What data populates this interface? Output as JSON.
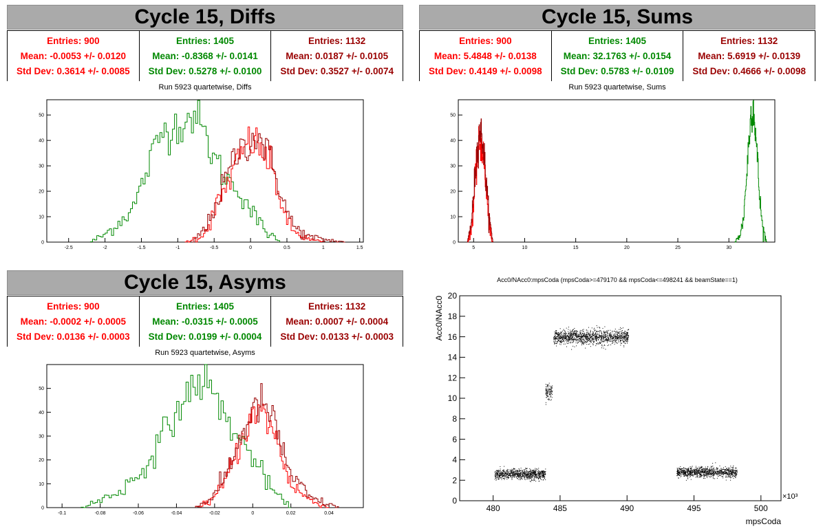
{
  "colors": {
    "red": "#ff0000",
    "green": "#008800",
    "darkred": "#990000",
    "scatter": "#000000"
  },
  "panels": [
    {
      "id": "diffs",
      "title": "Cycle 15, Diffs",
      "subtitle": "Run 5923 quartetwise, Diffs",
      "stats": [
        {
          "entries": "Entries: 900",
          "mean": "Mean: -0.0053 +/- 0.0120",
          "std": "Std Dev: 0.3614 +/- 0.0085",
          "color": "#ff0000"
        },
        {
          "entries": "Entries: 1405",
          "mean": "Mean: -0.8368 +/- 0.0141",
          "std": "Std Dev: 0.5278 +/- 0.0100",
          "color": "#008800"
        },
        {
          "entries": "Entries: 1132",
          "mean": "Mean: 0.0187 +/- 0.0105",
          "std": "Std Dev: 0.3527 +/- 0.0074",
          "color": "#990000"
        }
      ]
    },
    {
      "id": "sums",
      "title": "Cycle 15, Sums",
      "subtitle": "Run 5923 quartetwise, Sums",
      "stats": [
        {
          "entries": "Entries: 900",
          "mean": "Mean: 5.4848 +/- 0.0138",
          "std": "Std Dev: 0.4149 +/- 0.0098",
          "color": "#ff0000"
        },
        {
          "entries": "Entries: 1405",
          "mean": "Mean: 32.1763 +/- 0.0154",
          "std": "Std Dev: 0.5783 +/- 0.0109",
          "color": "#008800"
        },
        {
          "entries": "Entries: 1132",
          "mean": "Mean: 5.6919 +/- 0.0139",
          "std": "Std Dev: 0.4666 +/- 0.0098",
          "color": "#990000"
        }
      ]
    },
    {
      "id": "asyms",
      "title": "Cycle 15, Asyms",
      "subtitle": "Run 5923 quartetwise, Asyms",
      "stats": [
        {
          "entries": "Entries: 900",
          "mean": "Mean: -0.0002 +/- 0.0005",
          "std": "Std Dev: 0.0136 +/- 0.0003",
          "color": "#ff0000"
        },
        {
          "entries": "Entries: 1405",
          "mean": "Mean: -0.0315 +/- 0.0005",
          "std": "Std Dev: 0.0199 +/- 0.0004",
          "color": "#008800"
        },
        {
          "entries": "Entries: 1132",
          "mean": "Mean: 0.0007 +/- 0.0004",
          "std": "Std Dev: 0.0133 +/- 0.0003",
          "color": "#990000"
        }
      ]
    }
  ],
  "chart_data": [
    {
      "type": "line",
      "name": "diffs-histogram",
      "xlim": [
        -2.8,
        1.55
      ],
      "ylim": [
        0,
        56
      ],
      "xticks": [
        -2.5,
        -2,
        -1.5,
        -1,
        -0.5,
        0,
        0.5,
        1,
        1.5
      ],
      "xtick_labels": [
        "-2.5",
        "-2",
        "-1.5",
        "-1",
        "-0.5",
        "0",
        "0.5",
        "1",
        "1.5"
      ],
      "yticks": [
        0,
        10,
        20,
        30,
        40,
        50
      ],
      "ytick_labels": [
        "0",
        "10",
        "20",
        "30",
        "40",
        "50"
      ],
      "series": [
        {
          "color": "#008800",
          "x": [
            -2.2,
            -2.0,
            -1.8,
            -1.6,
            -1.5,
            -1.4,
            -1.3,
            -1.2,
            -1.1,
            -1.0,
            -0.9,
            -0.8,
            -0.7,
            -0.6,
            -0.5,
            -0.4,
            -0.3,
            -0.2,
            -0.1,
            0.0,
            0.1,
            0.2,
            0.3,
            0.4
          ],
          "y": [
            0,
            3,
            8,
            14,
            22,
            30,
            38,
            44,
            45,
            46,
            48,
            50,
            47,
            40,
            33,
            28,
            24,
            22,
            18,
            13,
            8,
            5,
            2,
            0
          ]
        },
        {
          "color": "#ff0000",
          "x": [
            -0.9,
            -0.7,
            -0.6,
            -0.5,
            -0.4,
            -0.3,
            -0.2,
            -0.1,
            0.0,
            0.1,
            0.2,
            0.3,
            0.4,
            0.5,
            0.6,
            0.8,
            1.0
          ],
          "y": [
            0,
            2,
            5,
            12,
            18,
            24,
            30,
            36,
            40,
            38,
            34,
            28,
            18,
            8,
            4,
            1,
            0
          ]
        },
        {
          "color": "#990000",
          "x": [
            -0.8,
            -0.7,
            -0.6,
            -0.5,
            -0.4,
            -0.3,
            -0.2,
            -0.1,
            0.0,
            0.1,
            0.2,
            0.3,
            0.4,
            0.5,
            0.6,
            0.8,
            1.0,
            1.3
          ],
          "y": [
            0,
            3,
            6,
            14,
            20,
            28,
            34,
            38,
            40,
            42,
            38,
            30,
            22,
            12,
            6,
            2,
            1,
            0
          ]
        }
      ]
    },
    {
      "type": "line",
      "name": "sums-histogram",
      "xlim": [
        3.5,
        34.5
      ],
      "ylim": [
        0,
        56
      ],
      "xticks": [
        5,
        10,
        15,
        20,
        25,
        30
      ],
      "xtick_labels": [
        "5",
        "10",
        "15",
        "20",
        "25",
        "30"
      ],
      "yticks": [
        0,
        10,
        20,
        30,
        40,
        50
      ],
      "ytick_labels": [
        "0",
        "10",
        "20",
        "30",
        "40",
        "50"
      ],
      "series": [
        {
          "color": "#008800",
          "x": [
            30.6,
            31.0,
            31.4,
            31.7,
            32.0,
            32.2,
            32.4,
            32.6,
            32.8,
            33.0,
            33.3,
            33.7
          ],
          "y": [
            0,
            2,
            8,
            24,
            42,
            52,
            54,
            44,
            32,
            18,
            6,
            0
          ]
        },
        {
          "color": "#ff0000",
          "x": [
            4.4,
            4.8,
            5.1,
            5.4,
            5.6,
            5.9,
            6.2,
            6.5,
            6.8
          ],
          "y": [
            0,
            5,
            20,
            34,
            40,
            36,
            22,
            8,
            0
          ]
        },
        {
          "color": "#990000",
          "x": [
            4.4,
            4.8,
            5.1,
            5.4,
            5.6,
            5.9,
            6.2,
            6.5,
            6.9
          ],
          "y": [
            0,
            8,
            24,
            38,
            44,
            40,
            26,
            10,
            0
          ]
        }
      ]
    },
    {
      "type": "line",
      "name": "asyms-histogram",
      "xlim": [
        -0.108,
        0.058
      ],
      "ylim": [
        0,
        60
      ],
      "xticks": [
        -0.1,
        -0.08,
        -0.06,
        -0.04,
        -0.02,
        0,
        0.02,
        0.04
      ],
      "xtick_labels": [
        "-0.1",
        "-0.08",
        "-0.06",
        "-0.04",
        "-0.02",
        "0",
        "0.02",
        "0.04"
      ],
      "yticks": [
        0,
        10,
        20,
        30,
        40,
        50
      ],
      "ytick_labels": [
        "0",
        "10",
        "20",
        "30",
        "40",
        "50"
      ],
      "series": [
        {
          "color": "#008800",
          "x": [
            -0.09,
            -0.08,
            -0.07,
            -0.06,
            -0.055,
            -0.05,
            -0.045,
            -0.04,
            -0.035,
            -0.03,
            -0.025,
            -0.02,
            -0.015,
            -0.01,
            -0.005,
            0.0,
            0.005,
            0.01,
            0.015,
            0.02
          ],
          "y": [
            0,
            3,
            7,
            13,
            20,
            26,
            33,
            40,
            46,
            52,
            54,
            46,
            40,
            32,
            26,
            22,
            14,
            8,
            3,
            0
          ]
        },
        {
          "color": "#ff0000",
          "x": [
            -0.03,
            -0.02,
            -0.015,
            -0.01,
            -0.005,
            0.0,
            0.005,
            0.01,
            0.015,
            0.02,
            0.03,
            0.04
          ],
          "y": [
            0,
            4,
            10,
            20,
            30,
            38,
            40,
            34,
            22,
            10,
            3,
            0
          ]
        },
        {
          "color": "#990000",
          "x": [
            -0.03,
            -0.02,
            -0.015,
            -0.01,
            -0.005,
            0.0,
            0.005,
            0.01,
            0.015,
            0.02,
            0.03,
            0.045
          ],
          "y": [
            0,
            5,
            12,
            22,
            32,
            40,
            44,
            38,
            26,
            14,
            4,
            0
          ]
        }
      ]
    },
    {
      "type": "scatter",
      "name": "acc0-scatter",
      "title": "Acc0/NAcc0:mpsCoda (mpsCoda>=479170 && mpsCoda<=498241 && beamState==1)",
      "xlabel": "mpsCoda",
      "ylabel": "Acc0/NAcc0",
      "x_multiplier": "×10³",
      "xlim": [
        477.5,
        501.5
      ],
      "ylim": [
        0,
        20
      ],
      "xticks": [
        480,
        485,
        490,
        495,
        500
      ],
      "xtick_labels": [
        "480",
        "485",
        "490",
        "495",
        "500"
      ],
      "yticks": [
        0,
        2,
        4,
        6,
        8,
        10,
        12,
        14,
        16,
        18,
        20
      ],
      "ytick_labels": [
        "0",
        "2",
        "4",
        "6",
        "8",
        "10",
        "12",
        "14",
        "16",
        "18",
        "20"
      ],
      "clusters": [
        {
          "x_range": [
            480.1,
            483.9
          ],
          "y_center": 2.6,
          "y_spread": 0.45
        },
        {
          "x_range": [
            483.9,
            484.4
          ],
          "y_center": 10.7,
          "y_spread": 0.7
        },
        {
          "x_range": [
            484.5,
            490.1
          ],
          "y_center": 16.0,
          "y_spread": 0.65
        },
        {
          "x_range": [
            493.7,
            498.2
          ],
          "y_center": 2.8,
          "y_spread": 0.45
        }
      ]
    }
  ]
}
